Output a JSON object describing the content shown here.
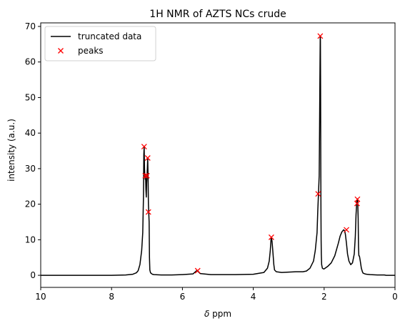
{
  "chart_data": {
    "type": "line",
    "title": "1H NMR of AZTS NCs crude",
    "xlabel_symbol": "δ",
    "xlabel_unit": "ppm",
    "ylabel": "intensity (a.u.)",
    "xlim": [
      10,
      0
    ],
    "ylim": [
      -3.4,
      71
    ],
    "x_reversed": true,
    "x_ticks": [
      10,
      8,
      6,
      4,
      2,
      0
    ],
    "y_ticks": [
      0,
      10,
      20,
      30,
      40,
      50,
      60,
      70
    ],
    "legend": {
      "location": "upper left",
      "entries": [
        "truncated data",
        "peaks"
      ]
    },
    "colors": {
      "line": "#000000",
      "peaks": "#ff0000"
    },
    "series": [
      {
        "name": "truncated data",
        "style": "line",
        "x": [
          10.0,
          9.0,
          8.0,
          7.6,
          7.4,
          7.3,
          7.25,
          7.2,
          7.15,
          7.12,
          7.1,
          7.09,
          7.08,
          7.07,
          7.06,
          7.05,
          7.04,
          7.03,
          7.02,
          7.01,
          7.0,
          6.99,
          6.98,
          6.97,
          6.96,
          6.95,
          6.94,
          6.93,
          6.92,
          6.9,
          6.85,
          6.8,
          6.6,
          6.3,
          6.0,
          5.7,
          5.6,
          5.55,
          5.5,
          5.2,
          4.5,
          4.0,
          3.7,
          3.6,
          3.55,
          3.52,
          3.5,
          3.49,
          3.47,
          3.45,
          3.42,
          3.4,
          3.35,
          3.2,
          3.0,
          2.8,
          2.6,
          2.5,
          2.4,
          2.3,
          2.25,
          2.2,
          2.18,
          2.16,
          2.14,
          2.13,
          2.12,
          2.11,
          2.105,
          2.1,
          2.095,
          2.09,
          2.085,
          2.08,
          2.07,
          2.05,
          2.02,
          2.0,
          1.9,
          1.8,
          1.7,
          1.6,
          1.55,
          1.5,
          1.45,
          1.42,
          1.4,
          1.37,
          1.34,
          1.3,
          1.25,
          1.2,
          1.15,
          1.12,
          1.1,
          1.08,
          1.06,
          1.05,
          1.04,
          1.03,
          1.02,
          1.01,
          1.0,
          0.98,
          0.95,
          0.92,
          0.9,
          0.85,
          0.8,
          0.7,
          0.6,
          0.5,
          0.3,
          0.25,
          0.2,
          0.0
        ],
        "y": [
          0.0,
          0.0,
          0.0,
          0.1,
          0.3,
          0.7,
          1.3,
          3.0,
          7.0,
          12.0,
          22.0,
          34.0,
          36.2,
          30.0,
          28.0,
          27.0,
          28.0,
          24.0,
          22.0,
          26.0,
          28.0,
          30.0,
          33.0,
          28.0,
          20.0,
          17.5,
          15.0,
          5.0,
          1.5,
          0.7,
          0.3,
          0.2,
          0.1,
          0.1,
          0.2,
          0.4,
          1.3,
          1.0,
          0.5,
          0.2,
          0.2,
          0.3,
          0.8,
          2.0,
          4.0,
          7.0,
          10.0,
          10.7,
          9.5,
          7.0,
          3.0,
          1.5,
          1.0,
          0.8,
          0.9,
          1.0,
          1.0,
          1.2,
          2.0,
          4.0,
          7.0,
          12.0,
          18.0,
          22.9,
          28.0,
          40.0,
          55.0,
          67.3,
          66.0,
          52.0,
          32.0,
          18.0,
          10.0,
          6.0,
          3.0,
          2.0,
          1.8,
          1.8,
          2.5,
          3.5,
          5.5,
          9.0,
          11.0,
          12.2,
          12.8,
          12.5,
          11.5,
          9.0,
          6.0,
          4.0,
          3.0,
          3.5,
          6.0,
          11.0,
          17.0,
          20.5,
          21.5,
          20.0,
          16.0,
          8.0,
          5.5,
          5.5,
          5.2,
          4.0,
          2.0,
          1.0,
          0.6,
          0.4,
          0.3,
          0.2,
          0.15,
          0.1,
          0.1,
          0.0,
          0.0,
          0.0
        ]
      },
      {
        "name": "peaks",
        "style": "marker",
        "x": [
          7.08,
          7.05,
          7.0,
          6.98,
          6.96,
          5.57,
          3.49,
          2.17,
          2.11,
          1.37,
          1.07,
          1.06
        ],
        "y": [
          36.2,
          28.0,
          28.0,
          33.0,
          17.8,
          1.3,
          10.7,
          22.9,
          67.3,
          12.8,
          20.2,
          21.4
        ]
      }
    ]
  }
}
